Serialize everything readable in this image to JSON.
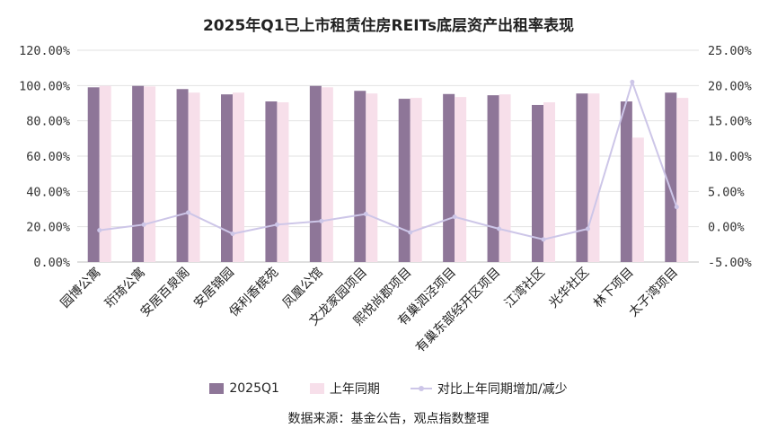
{
  "chart_data": {
    "type": "bar",
    "title": "2025年Q1已上市租赁住房REITs底层资产出租率表现",
    "categories": [
      "园博公寓",
      "珩琦公寓",
      "安居百泉阁",
      "安居锦园",
      "保利香槟苑",
      "凤凰公馆",
      "文龙家园项目",
      "熙悦尚郡项目",
      "有巢泗泾项目",
      "有巢东部经开区项目",
      "江湾社区",
      "光华社区",
      "林下项目",
      "太子湾项目"
    ],
    "series": [
      {
        "name": "2025Q1",
        "axis": "left",
        "kind": "bar",
        "values": [
          99.0,
          99.8,
          98.0,
          95.0,
          91.0,
          99.8,
          97.0,
          92.5,
          95.2,
          94.5,
          89.0,
          95.5,
          91.0,
          96.0
        ]
      },
      {
        "name": "上年同期",
        "axis": "left",
        "kind": "bar",
        "values": [
          99.8,
          99.5,
          96.0,
          96.0,
          90.5,
          99.0,
          95.5,
          93.0,
          93.5,
          95.0,
          90.5,
          95.5,
          70.5,
          93.0
        ]
      },
      {
        "name": "对比上年同期增加/减少",
        "axis": "right",
        "kind": "line",
        "values": [
          -0.5,
          0.3,
          2.0,
          -1.0,
          0.3,
          0.8,
          1.8,
          -0.8,
          1.4,
          -0.3,
          -1.8,
          -0.3,
          20.5,
          2.8
        ]
      }
    ],
    "y_left": {
      "min": 0,
      "max": 120,
      "step": 20,
      "tick_labels": [
        "0.00%",
        "20.00%",
        "40.00%",
        "60.00%",
        "80.00%",
        "100.00%",
        "120.00%"
      ]
    },
    "y_right": {
      "min": -5,
      "max": 25,
      "step": 5,
      "tick_labels": [
        "-5.00%",
        "0.00%",
        "5.00%",
        "10.00%",
        "15.00%",
        "20.00%",
        "25.00%"
      ]
    },
    "grid": true,
    "legend_position": "bottom",
    "colors": {
      "current": "#8e7698",
      "previous": "#f7dfea",
      "change": "#cdc6e8",
      "grid": "#e2e2e2",
      "axis": "#bfbfbf"
    },
    "source": "数据来源：基金公告，观点指数整理"
  }
}
